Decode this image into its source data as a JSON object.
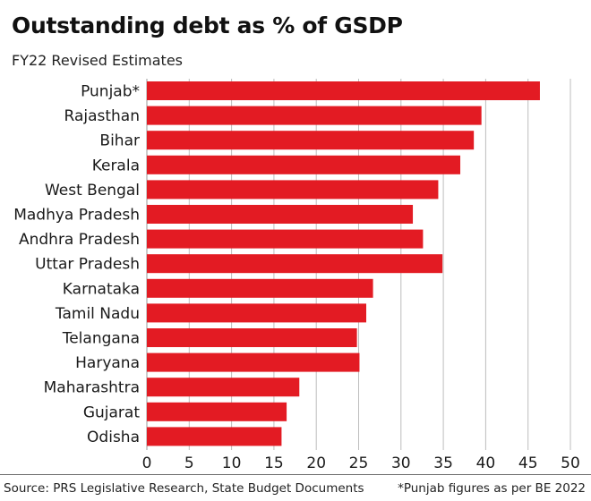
{
  "chart_data": {
    "type": "bar",
    "orientation": "horizontal",
    "title": "Outstanding debt as % of GSDP",
    "subtitle": "FY22 Revised Estimates",
    "categories": [
      "Punjab*",
      "Rajasthan",
      "Bihar",
      "Kerala",
      "West Bengal",
      "Madhya Pradesh",
      "Andhra Pradesh",
      "Uttar Pradesh",
      "Karnataka",
      "Tamil Nadu",
      "Telangana",
      "Haryana",
      "Maharashtra",
      "Gujarat",
      "Odisha"
    ],
    "values": [
      46.4,
      39.5,
      38.6,
      37.0,
      34.4,
      31.4,
      32.6,
      34.9,
      26.7,
      25.9,
      24.8,
      25.1,
      18.0,
      16.5,
      15.9
    ],
    "xticks": [
      "0",
      "5",
      "10",
      "15",
      "20",
      "25",
      "30",
      "35",
      "40",
      "45",
      "50"
    ],
    "xlim": [
      0,
      50
    ],
    "grid": true,
    "bar_color": "#e31b23",
    "grid_color": "#bdbdbd"
  },
  "footer": {
    "source": "Source: PRS Legislative Research, State Budget Documents",
    "note": "*Punjab figures as per BE 2022"
  }
}
